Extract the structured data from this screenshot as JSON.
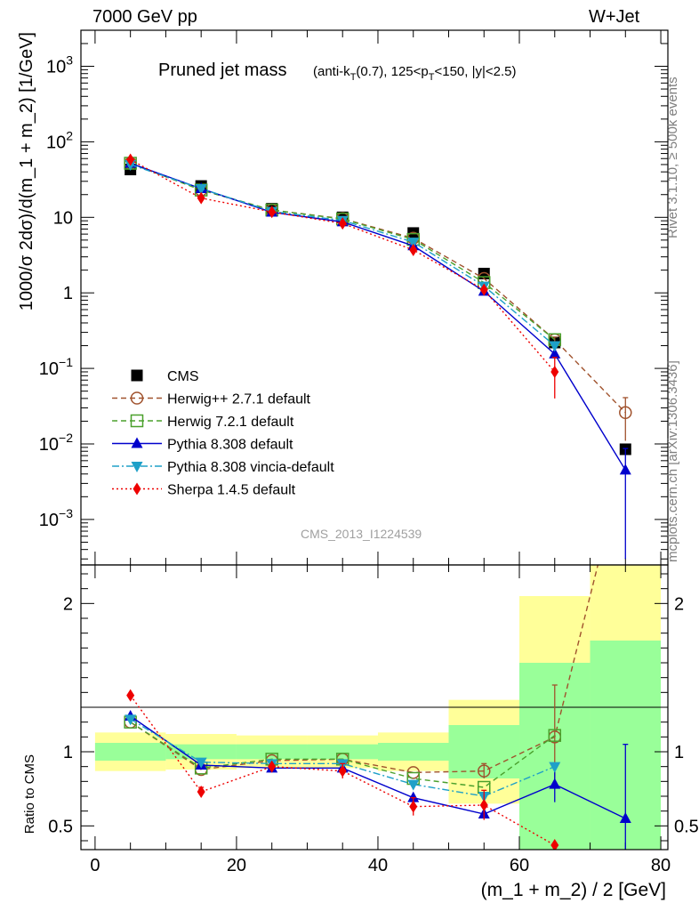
{
  "header": {
    "left": "7000 GeV pp",
    "right": "W+Jet"
  },
  "side_labels": {
    "rivet": "Rivet 3.1.10, ≥ 500k events",
    "mcplots": "mcplots.cern.ch [arXiv:1306.3436]"
  },
  "plot_title": {
    "main": "Pruned jet mass",
    "sub": "(anti-k_T(0.7), 125<p_T<150, |y|<2.5)"
  },
  "watermark": "CMS_2013_I1224539",
  "chart_data": [
    {
      "type": "line",
      "panel": "main",
      "ylabel": "1000/σ 2dσ)/d(m_1 + m_2) [1/GeV]",
      "yscale": "log",
      "xlim": [
        -2,
        81
      ],
      "ylim": [
        0.00025,
        3000
      ],
      "yticks": [
        "10^-3",
        "10^-2",
        "10^-1",
        "1",
        "10",
        "10^2",
        "10^3"
      ],
      "x": [
        5,
        15,
        25,
        35,
        45,
        55,
        65,
        75
      ],
      "series": [
        {
          "name": "CMS",
          "color": "#000000",
          "marker": "square",
          "values": [
            43,
            26,
            13,
            10,
            6.2,
            1.8,
            0.22,
            0.0085
          ]
        },
        {
          "name": "Herwig++ 2.7.1 default",
          "color": "#a0522d",
          "marker": "circle-open",
          "dash": "6,4",
          "values": [
            52,
            23,
            12.5,
            9.6,
            5.3,
            1.55,
            0.24,
            0.026
          ],
          "errors": [
            null,
            null,
            null,
            null,
            null,
            null,
            0.02,
            0.015
          ]
        },
        {
          "name": "Herwig 7.2.1 default",
          "color": "#4aa02c",
          "marker": "square-open",
          "dash": "6,4",
          "values": [
            52,
            23,
            12.5,
            9.5,
            5.1,
            1.37,
            0.24,
            null
          ]
        },
        {
          "name": "Pythia 8.308 default",
          "color": "#0000cc",
          "marker": "triangle-up",
          "dash": "",
          "values": [
            52,
            24,
            11.7,
            8.7,
            4.2,
            1.05,
            0.155,
            0.0045
          ],
          "errors": [
            null,
            null,
            null,
            null,
            null,
            null,
            null,
            0.0042
          ]
        },
        {
          "name": "Pythia 8.308 vincia-default",
          "color": "#1ea0c8",
          "marker": "triangle-down",
          "dash": "8,3,2,3",
          "values": [
            50,
            24,
            12,
            9.1,
            4.7,
            1.23,
            0.2,
            null
          ]
        },
        {
          "name": "Sherpa 1.4.5 default",
          "color": "#ee0000",
          "marker": "diamond",
          "dash": "2,3",
          "values": [
            58,
            18,
            11.8,
            8.3,
            3.7,
            1.1,
            0.09,
            null
          ],
          "errors": [
            null,
            null,
            null,
            null,
            null,
            null,
            0.05,
            null
          ]
        }
      ]
    },
    {
      "type": "line",
      "panel": "ratio",
      "ylabel": "Ratio to CMS",
      "xlabel": "(m_1 + m_2) / 2 [GeV]",
      "xlim": [
        -2,
        81
      ],
      "ylim": [
        0.34,
        2.26
      ],
      "xticks": [
        0,
        20,
        40,
        60,
        80
      ],
      "yticks": [
        0.5,
        1,
        2
      ],
      "x": [
        5,
        15,
        25,
        35,
        45,
        55,
        65,
        75
      ],
      "bands": {
        "bins": [
          [
            0,
            10
          ],
          [
            10,
            20
          ],
          [
            20,
            30
          ],
          [
            30,
            40
          ],
          [
            40,
            50
          ],
          [
            50,
            60
          ],
          [
            60,
            70
          ],
          [
            70,
            80
          ]
        ],
        "green": [
          [
            0.94,
            1.06
          ],
          [
            0.95,
            1.05
          ],
          [
            0.95,
            1.05
          ],
          [
            0.95,
            1.05
          ],
          [
            0.94,
            1.06
          ],
          [
            0.82,
            1.18
          ],
          [
            0.3,
            1.6
          ],
          [
            0.3,
            1.75
          ]
        ],
        "yellow": [
          [
            0.87,
            1.13
          ],
          [
            0.88,
            1.12
          ],
          [
            0.89,
            1.11
          ],
          [
            0.89,
            1.11
          ],
          [
            0.87,
            1.13
          ],
          [
            0.65,
            1.35
          ],
          [
            0.3,
            2.05
          ],
          [
            0.3,
            2.3
          ]
        ],
        "green_color": "#99ff99",
        "yellow_color": "#ffff99"
      },
      "series": [
        {
          "name": "Herwig++ 2.7.1 default",
          "color": "#a0522d",
          "marker": "circle-open",
          "dash": "6,4",
          "values": [
            1.2,
            0.88,
            0.94,
            0.95,
            0.86,
            0.87,
            1.1,
            3.0
          ],
          "errors": [
            null,
            null,
            null,
            null,
            null,
            0.05,
            0.35,
            null
          ]
        },
        {
          "name": "Herwig 7.2.1 default",
          "color": "#4aa02c",
          "marker": "square-open",
          "dash": "6,4",
          "values": [
            1.2,
            0.89,
            0.95,
            0.95,
            0.82,
            0.76,
            1.11,
            null
          ]
        },
        {
          "name": "Pythia 8.308 default",
          "color": "#0000cc",
          "marker": "triangle-up",
          "dash": "",
          "values": [
            1.24,
            0.91,
            0.89,
            0.89,
            0.69,
            0.58,
            0.78,
            0.55
          ],
          "errors": [
            null,
            null,
            null,
            null,
            null,
            null,
            0.12,
            0.5
          ]
        },
        {
          "name": "Pythia 8.308 vincia-default",
          "color": "#1ea0c8",
          "marker": "triangle-down",
          "dash": "8,3,2,3",
          "values": [
            1.22,
            0.93,
            0.92,
            0.92,
            0.78,
            0.7,
            0.9,
            null
          ]
        },
        {
          "name": "Sherpa 1.4.5 default",
          "color": "#ee0000",
          "marker": "diamond",
          "dash": "2,3",
          "values": [
            1.38,
            0.73,
            0.9,
            0.87,
            0.63,
            0.64,
            0.37,
            null
          ],
          "errors": [
            null,
            0.03,
            null,
            0.05,
            0.06,
            0.1,
            null,
            null
          ]
        }
      ]
    }
  ]
}
